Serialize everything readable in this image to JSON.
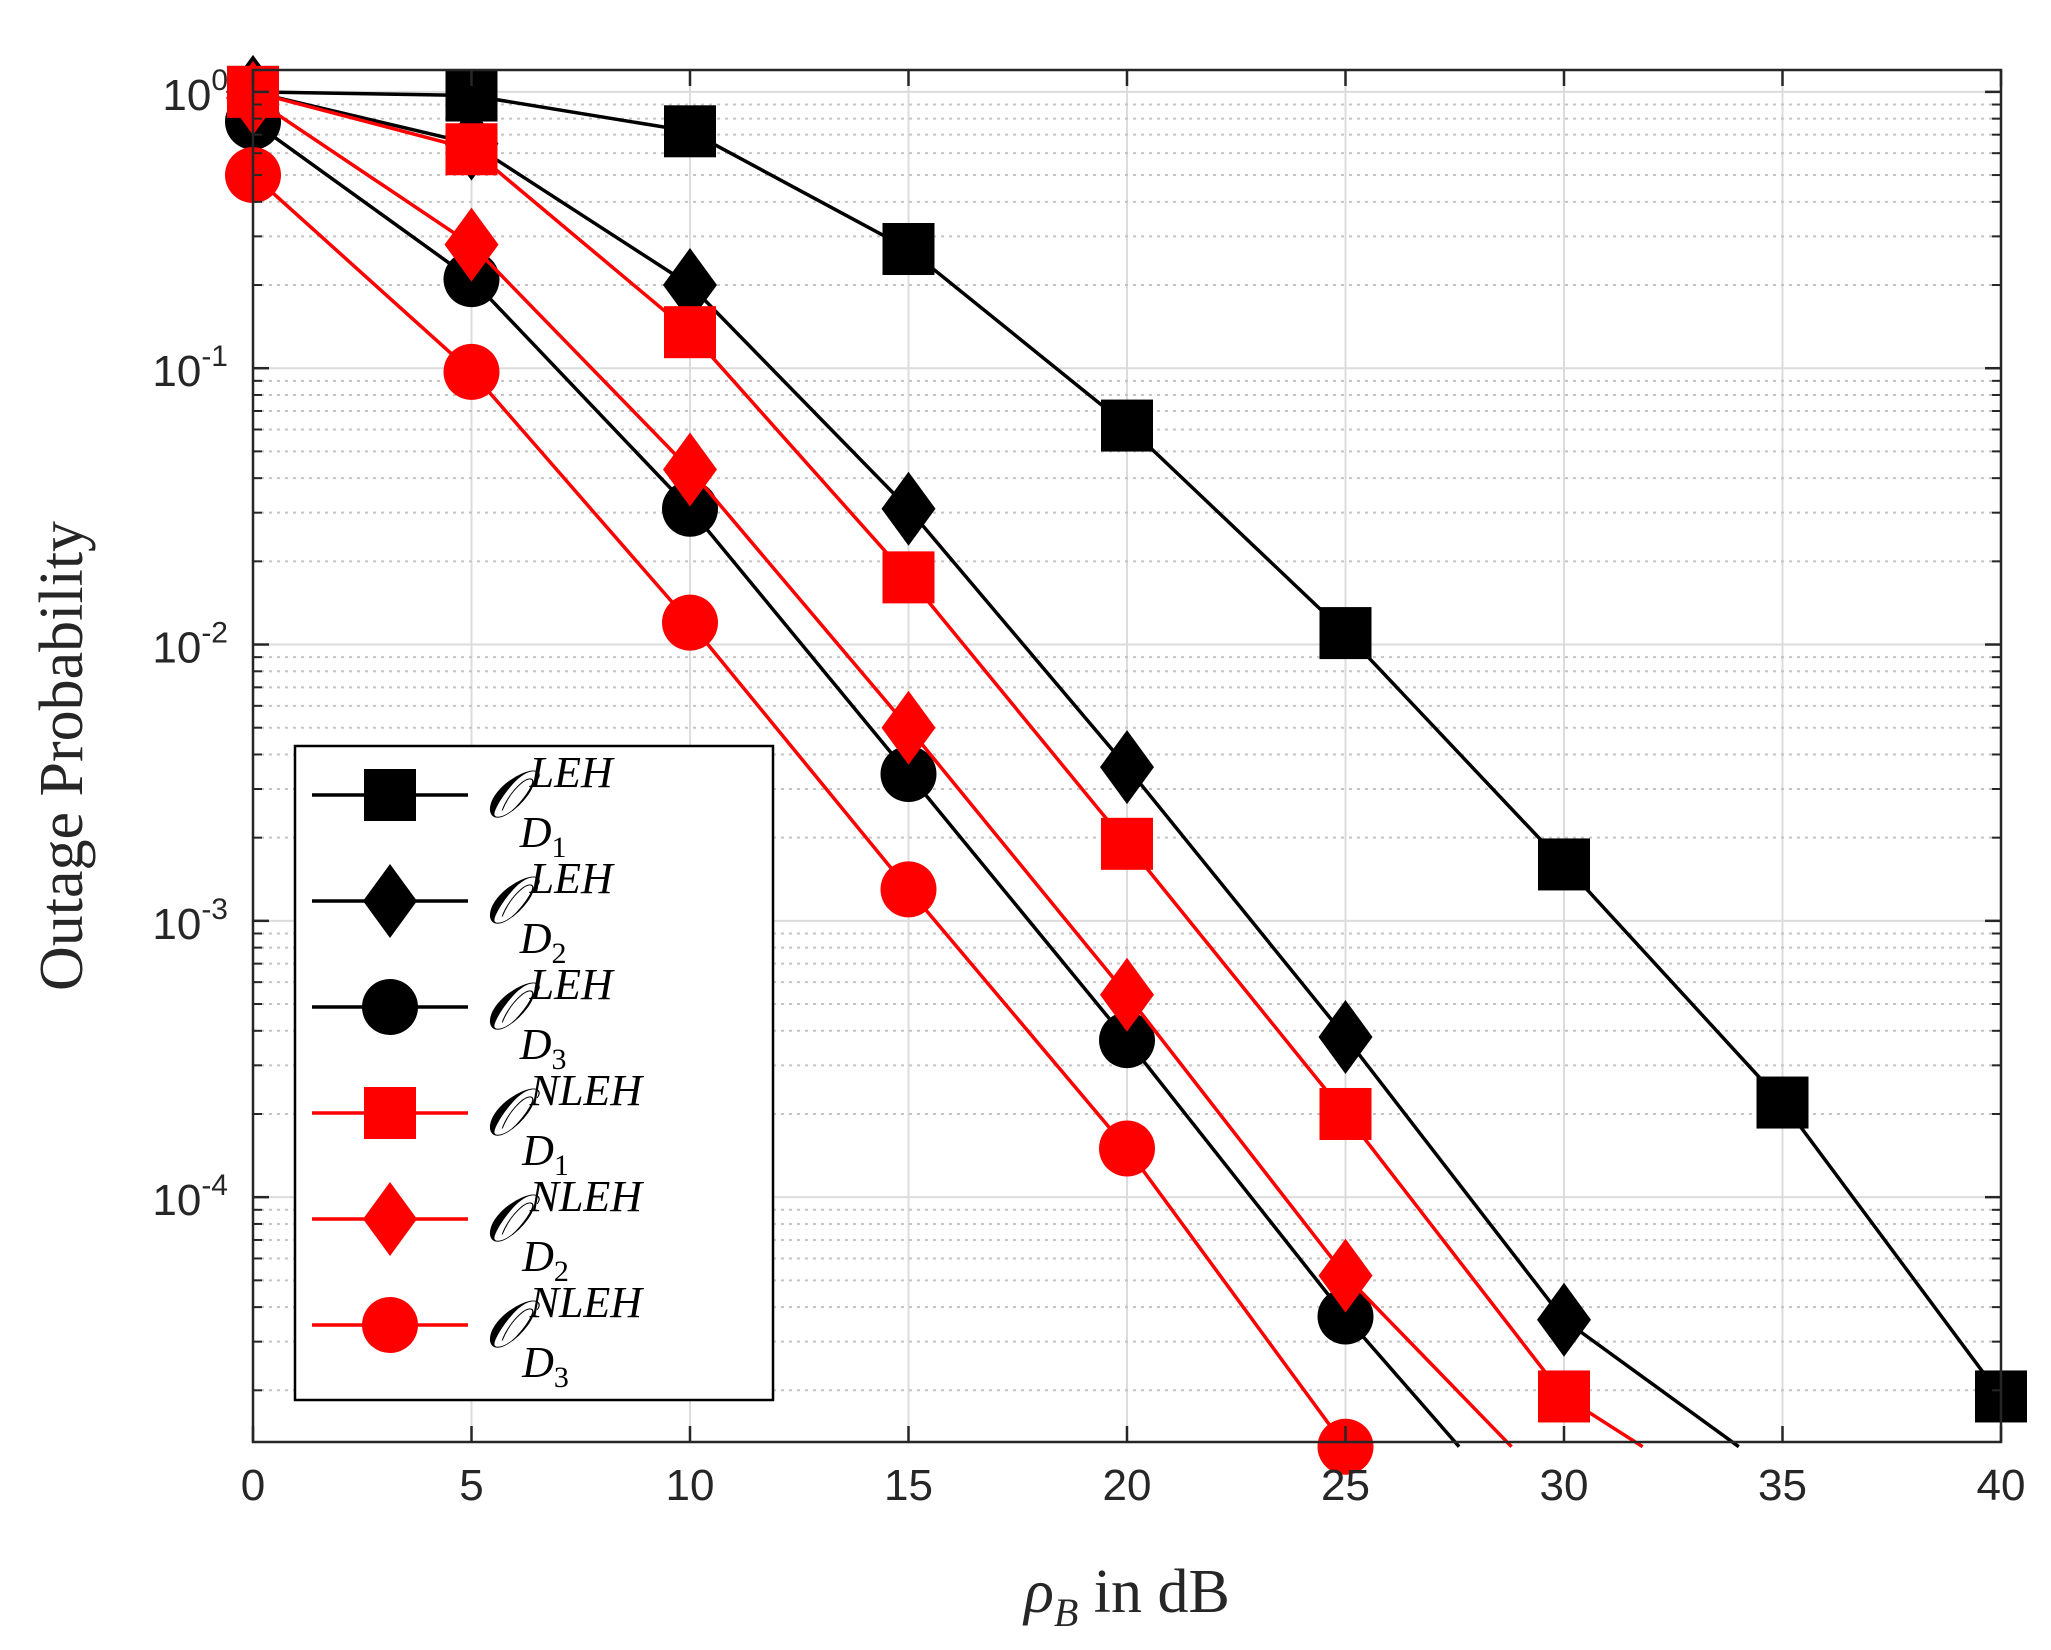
{
  "chart_data": {
    "type": "line",
    "title": "",
    "xlabel": "ρ_B in dB",
    "xlabel_parts": {
      "symbol": "ρ",
      "subscript": "B",
      "suffix": " in dB"
    },
    "ylabel": "Outage Probability",
    "xscale": "linear",
    "yscale": "log",
    "xlim": [
      0,
      40
    ],
    "ylim": [
      1.3e-05,
      1.2
    ],
    "xticks": [
      0,
      5,
      10,
      15,
      20,
      25,
      30,
      35,
      40
    ],
    "xtick_labels": [
      "0",
      "5",
      "10",
      "15",
      "20",
      "25",
      "30",
      "35",
      "40"
    ],
    "yticks": [
      1,
      0.1,
      0.01,
      0.001,
      0.0001
    ],
    "ytick_labels": [
      {
        "base": "10",
        "exp": "0"
      },
      {
        "base": "10",
        "exp": "-1"
      },
      {
        "base": "10",
        "exp": "-2"
      },
      {
        "base": "10",
        "exp": "-3"
      },
      {
        "base": "10",
        "exp": "-4"
      }
    ],
    "grid": true,
    "minor_grid": true,
    "legend_position": "bottom-left",
    "series": [
      {
        "name": "O_{D_1}^{LEH}",
        "label": {
          "main": "𝒪",
          "sup": "LEH",
          "sub": "D",
          "subsub": "1"
        },
        "color": "#000000",
        "marker": "square",
        "x": [
          0,
          5,
          10,
          15,
          20,
          25,
          30,
          35,
          40
        ],
        "y": [
          1.0,
          0.97,
          0.72,
          0.27,
          0.062,
          0.011,
          0.0016,
          0.00022,
          1.9e-05
        ]
      },
      {
        "name": "O_{D_2}^{LEH}",
        "label": {
          "main": "𝒪",
          "sup": "LEH",
          "sub": "D",
          "subsub": "2"
        },
        "color": "#000000",
        "marker": "diamond",
        "x": [
          0,
          5,
          10,
          15,
          20,
          25,
          30,
          34
        ],
        "y": [
          1.0,
          0.65,
          0.2,
          0.031,
          0.0036,
          0.00038,
          3.6e-05,
          1.25e-05
        ]
      },
      {
        "name": "O_{D_3}^{LEH}",
        "label": {
          "main": "𝒪",
          "sup": "LEH",
          "sub": "D",
          "subsub": "3"
        },
        "color": "#000000",
        "marker": "circle",
        "x": [
          0,
          5,
          10,
          15,
          20,
          25,
          27.6
        ],
        "y": [
          0.78,
          0.21,
          0.031,
          0.0034,
          0.00037,
          3.7e-05,
          1.25e-05
        ]
      },
      {
        "name": "O_{D_1}^{NLEH}",
        "label": {
          "main": "𝒪",
          "sup": "NLEH",
          "sub": "D",
          "subsub": "1"
        },
        "color": "#ff0000",
        "marker": "square",
        "x": [
          0,
          5,
          10,
          15,
          20,
          25,
          30,
          31.8
        ],
        "y": [
          1.0,
          0.62,
          0.135,
          0.0175,
          0.0019,
          0.0002,
          1.9e-05,
          1.25e-05
        ]
      },
      {
        "name": "O_{D_2}^{NLEH}",
        "label": {
          "main": "𝒪",
          "sup": "NLEH",
          "sub": "D",
          "subsub": "2"
        },
        "color": "#ff0000",
        "marker": "diamond",
        "x": [
          0,
          5,
          10,
          15,
          20,
          25,
          28.8
        ],
        "y": [
          0.95,
          0.28,
          0.043,
          0.005,
          0.00054,
          5.2e-05,
          1.25e-05
        ]
      },
      {
        "name": "O_{D_3}^{NLEH}",
        "label": {
          "main": "𝒪",
          "sup": "NLEH",
          "sub": "D",
          "subsub": "3"
        },
        "color": "#ff0000",
        "marker": "circle",
        "x": [
          0,
          5,
          10,
          15,
          20,
          25
        ],
        "y": [
          0.5,
          0.097,
          0.012,
          0.0013,
          0.00015,
          1.25e-05
        ]
      }
    ]
  }
}
